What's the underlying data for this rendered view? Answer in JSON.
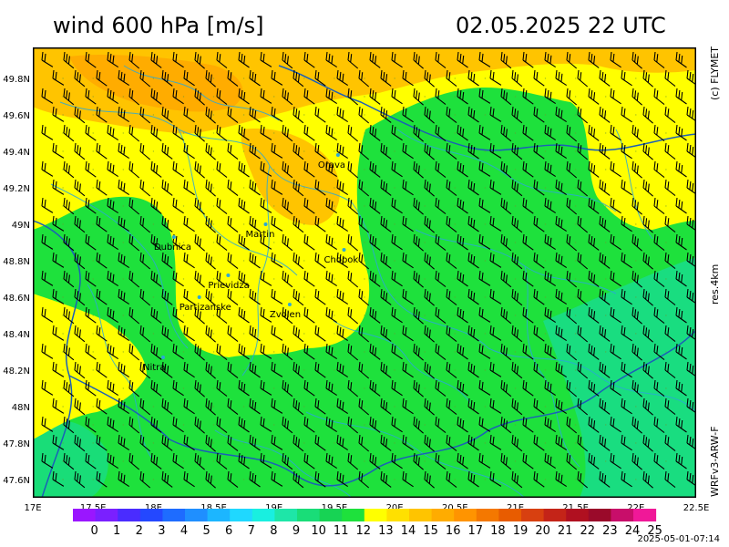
{
  "header": {
    "title": "wind 600 hPa [m/s]",
    "datetime": "02.05.2025   22 UTC"
  },
  "side_labels": {
    "credit": "(c) FLYMET",
    "resolution": "res.4km",
    "model": "WRFv3-ARW-F"
  },
  "map": {
    "x_ticks": [
      "17E",
      "17.5E",
      "18E",
      "18.5E",
      "19E",
      "19.5E",
      "20E",
      "20.5E",
      "21E",
      "21.5E",
      "22E",
      "22.5E"
    ],
    "y_ticks": [
      "49.8N",
      "49.6N",
      "49.4N",
      "49.2N",
      "49N",
      "48.8N",
      "48.6N",
      "48.4N",
      "48.2N",
      "48N",
      "47.8N",
      "47.6N"
    ],
    "lon_range": [
      17,
      22.5
    ],
    "lat_range": [
      47.5,
      49.97
    ],
    "cities": [
      {
        "name": "Orava",
        "lon": 19.53,
        "lat": 49.38
      },
      {
        "name": "Martin",
        "lon": 18.93,
        "lat": 49.0
      },
      {
        "name": "Dubnica",
        "lon": 18.17,
        "lat": 48.93
      },
      {
        "name": "Chopok",
        "lon": 19.58,
        "lat": 48.86
      },
      {
        "name": "Prievidza",
        "lon": 18.62,
        "lat": 48.72
      },
      {
        "name": "Partizanske",
        "lon": 18.38,
        "lat": 48.6
      },
      {
        "name": "Zvolen",
        "lon": 19.13,
        "lat": 48.56
      },
      {
        "name": "Nitra",
        "lon": 18.08,
        "lat": 48.27
      }
    ]
  },
  "legend": {
    "labels": [
      "0",
      "1",
      "2",
      "3",
      "4",
      "5",
      "6",
      "7",
      "8",
      "9",
      "10",
      "11",
      "12",
      "13",
      "14",
      "15",
      "16",
      "17",
      "18",
      "19",
      "20",
      "21",
      "22",
      "23",
      "24",
      "25"
    ],
    "colors": [
      "#9a16ff",
      "#7a20ff",
      "#4a2cff",
      "#2448ff",
      "#1e6cff",
      "#1f8fff",
      "#1cb6ff",
      "#1fd8ff",
      "#19efe0",
      "#1ee6a8",
      "#19dd78",
      "#17d354",
      "#1ee13c",
      "#ffff00",
      "#ffe000",
      "#ffc400",
      "#ffac00",
      "#ff9400",
      "#f47800",
      "#e85c00",
      "#d84010",
      "#c42418",
      "#b01020",
      "#9a0a2a",
      "#c80e6a",
      "#f01898"
    ]
  },
  "footer": {
    "timestamp": "2025-05-01-07:14"
  }
}
